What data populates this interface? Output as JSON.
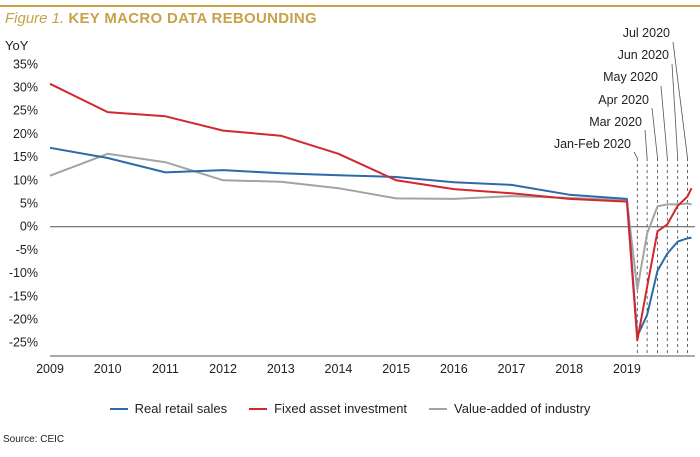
{
  "figure": {
    "label": "Figure 1.",
    "title": "KEY MACRO DATA REBOUNDING"
  },
  "source": "Source: CEIC",
  "colors": {
    "accent": "#c8a24a",
    "retail": "#2e6aa8",
    "fai": "#d0282e",
    "industry": "#a3a3a3"
  },
  "chart_data": {
    "type": "line",
    "ylabel": "YoY",
    "ylim": [
      -0.27,
      0.37
    ],
    "yticks": [
      0.35,
      0.3,
      0.25,
      0.2,
      0.15,
      0.1,
      0.05,
      0.0,
      -0.05,
      -0.1,
      -0.15,
      -0.2,
      -0.25
    ],
    "ytick_labels": [
      "35%",
      "30%",
      "25%",
      "20%",
      "15%",
      "10%",
      "5%",
      "0%",
      "-5%",
      "-10%",
      "-15%",
      "-20%",
      "-25%"
    ],
    "xlim": [
      2009,
      2020.18
    ],
    "xticks": [
      2009,
      2010,
      2011,
      2012,
      2013,
      2014,
      2015,
      2016,
      2017,
      2018,
      2019
    ],
    "xtick_labels": [
      "2009",
      "2010",
      "2011",
      "2012",
      "2013",
      "2014",
      "2015",
      "2016",
      "2017",
      "2018",
      "2019"
    ],
    "grid": false,
    "legend_position": "bottom",
    "monthly_markers": [
      2019.18,
      2019.35,
      2019.53,
      2019.7,
      2019.88,
      2020.05
    ],
    "annotations": [
      "Jan-Feb 2020",
      "Mar 2020",
      "Apr 2020",
      "May 2020",
      "Jun 2020",
      "Jul 2020"
    ],
    "series": [
      {
        "name": "Real retail sales",
        "points": [
          [
            2009,
            0.17
          ],
          [
            2010,
            0.148
          ],
          [
            2011,
            0.117
          ],
          [
            2012,
            0.122
          ],
          [
            2013,
            0.115
          ],
          [
            2014,
            0.111
          ],
          [
            2015,
            0.107
          ],
          [
            2016,
            0.096
          ],
          [
            2017,
            0.09
          ],
          [
            2018,
            0.069
          ],
          [
            2019,
            0.06
          ],
          [
            2019.18,
            -0.236
          ],
          [
            2019.35,
            -0.19
          ],
          [
            2019.53,
            -0.095
          ],
          [
            2019.7,
            -0.058
          ],
          [
            2019.88,
            -0.032
          ],
          [
            2020.05,
            -0.025
          ],
          [
            2020.12,
            -0.024
          ]
        ]
      },
      {
        "name": "Fixed asset investment",
        "points": [
          [
            2009,
            0.308
          ],
          [
            2010,
            0.247
          ],
          [
            2011,
            0.238
          ],
          [
            2012,
            0.207
          ],
          [
            2013,
            0.196
          ],
          [
            2014,
            0.157
          ],
          [
            2015,
            0.1
          ],
          [
            2016,
            0.081
          ],
          [
            2017,
            0.072
          ],
          [
            2018,
            0.06
          ],
          [
            2019,
            0.054
          ],
          [
            2019.18,
            -0.245
          ],
          [
            2019.35,
            -0.13
          ],
          [
            2019.53,
            -0.01
          ],
          [
            2019.7,
            0.005
          ],
          [
            2019.88,
            0.045
          ],
          [
            2020.05,
            0.065
          ],
          [
            2020.12,
            0.083
          ]
        ]
      },
      {
        "name": "Value-added of industry",
        "points": [
          [
            2009,
            0.11
          ],
          [
            2010,
            0.157
          ],
          [
            2011,
            0.139
          ],
          [
            2012,
            0.1
          ],
          [
            2013,
            0.097
          ],
          [
            2014,
            0.083
          ],
          [
            2015,
            0.061
          ],
          [
            2016,
            0.06
          ],
          [
            2017,
            0.066
          ],
          [
            2018,
            0.062
          ],
          [
            2019,
            0.057
          ],
          [
            2019.18,
            -0.135
          ],
          [
            2019.35,
            -0.015
          ],
          [
            2019.53,
            0.044
          ],
          [
            2019.7,
            0.048
          ],
          [
            2019.88,
            0.048
          ],
          [
            2020.05,
            0.05
          ],
          [
            2020.12,
            0.048
          ]
        ]
      }
    ]
  }
}
